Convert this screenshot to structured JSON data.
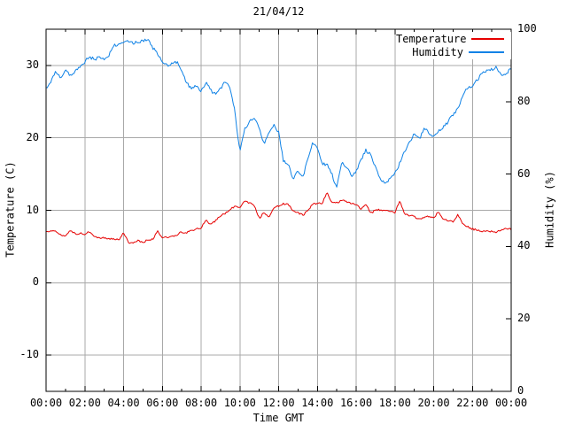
{
  "title": "21/04/12",
  "chart_data": {
    "type": "line",
    "title": "21/04/12",
    "xlabel": "Time GMT",
    "ylabel": "Temperature (C)",
    "y2label": "Humidity (%)",
    "xlim_hours": [
      0,
      24
    ],
    "ylim": [
      -15,
      35
    ],
    "y2lim": [
      0,
      100
    ],
    "grid": {
      "color": "#a8a8a8",
      "x_major_step_hours": 2,
      "x_minor_step_hours": 1
    },
    "x_tick_labels": [
      {
        "h": 0,
        "label": "00:00"
      },
      {
        "h": 2,
        "label": "02:00"
      },
      {
        "h": 4,
        "label": "04:00"
      },
      {
        "h": 6,
        "label": "06:00"
      },
      {
        "h": 8,
        "label": "08:00"
      },
      {
        "h": 10,
        "label": "10:00"
      },
      {
        "h": 12,
        "label": "12:00"
      },
      {
        "h": 14,
        "label": "14:00"
      },
      {
        "h": 16,
        "label": "16:00"
      },
      {
        "h": 18,
        "label": "18:00"
      },
      {
        "h": 20,
        "label": "20:00"
      },
      {
        "h": 22,
        "label": "22:00"
      },
      {
        "h": 24,
        "label": "00:00"
      }
    ],
    "y_ticks": [
      -10,
      0,
      10,
      20,
      30
    ],
    "y2_ticks": [
      0,
      20,
      40,
      60,
      80,
      100
    ],
    "legend": {
      "position": "top-right"
    },
    "x_start_hours": 0,
    "x_step_hours": 0.25,
    "series": [
      {
        "name": "Temperature",
        "axis": "y1",
        "color": "#e60000",
        "values": [
          7.0,
          7.2,
          7.1,
          6.6,
          6.4,
          7.3,
          6.7,
          6.8,
          6.7,
          7.1,
          6.3,
          6.1,
          6.2,
          6.0,
          6.1,
          5.9,
          6.9,
          5.5,
          5.4,
          5.8,
          5.6,
          5.9,
          6.0,
          7.1,
          6.3,
          6.2,
          6.4,
          6.6,
          7.0,
          6.9,
          7.2,
          7.4,
          7.6,
          8.6,
          8.0,
          8.6,
          9.2,
          9.6,
          10.2,
          10.5,
          10.4,
          11.2,
          11.0,
          10.6,
          8.9,
          9.7,
          9.1,
          10.3,
          10.6,
          10.9,
          10.8,
          9.9,
          9.7,
          9.3,
          10.0,
          10.8,
          11.0,
          11.0,
          12.4,
          11.1,
          11.0,
          11.4,
          11.2,
          10.9,
          10.8,
          10.2,
          10.9,
          9.6,
          10.0,
          10.1,
          9.9,
          9.8,
          9.7,
          11.3,
          9.5,
          9.3,
          9.1,
          8.8,
          9.0,
          9.2,
          8.9,
          9.9,
          8.7,
          8.6,
          8.4,
          9.4,
          8.1,
          7.7,
          7.4,
          7.3,
          7.0,
          7.2,
          7.1,
          7.0,
          7.3,
          7.5,
          7.4
        ]
      },
      {
        "name": "Humidity",
        "axis": "y2",
        "color": "#0f82e6",
        "values": [
          83.5,
          85.5,
          88.5,
          86.5,
          89.0,
          87.0,
          88.5,
          89.5,
          91.0,
          92.5,
          91.5,
          92.5,
          91.5,
          93.0,
          95.5,
          96.0,
          96.3,
          96.5,
          96.0,
          96.5,
          96.8,
          97.3,
          95.0,
          93.4,
          91.0,
          90.0,
          90.3,
          91.0,
          88.5,
          85.0,
          83.8,
          84.5,
          83.0,
          85.3,
          83.0,
          82.0,
          83.5,
          85.5,
          84.0,
          77.0,
          66.0,
          72.5,
          74.5,
          75.8,
          72.5,
          68.0,
          71.5,
          73.5,
          71.5,
          63.5,
          62.5,
          58.7,
          61.0,
          59.0,
          64.0,
          68.9,
          67.5,
          63.0,
          62.5,
          60.0,
          56.0,
          63.5,
          62.0,
          59.5,
          60.5,
          64.0,
          66.5,
          65.5,
          62.0,
          58.5,
          57.5,
          58.5,
          60.2,
          63.0,
          66.0,
          69.0,
          71.0,
          69.5,
          72.5,
          71.5,
          70.5,
          72.0,
          73.0,
          74.5,
          76.5,
          78.0,
          81.5,
          84.0,
          84.5,
          86.0,
          87.7,
          88.5,
          89.0,
          89.4,
          87.5,
          87.8,
          89.3
        ]
      }
    ],
    "jitter": {
      "seed": 1337,
      "step_hours": 0.06,
      "amplitudes": {
        "Temperature": 0.13,
        "Humidity": 0.45
      }
    }
  }
}
